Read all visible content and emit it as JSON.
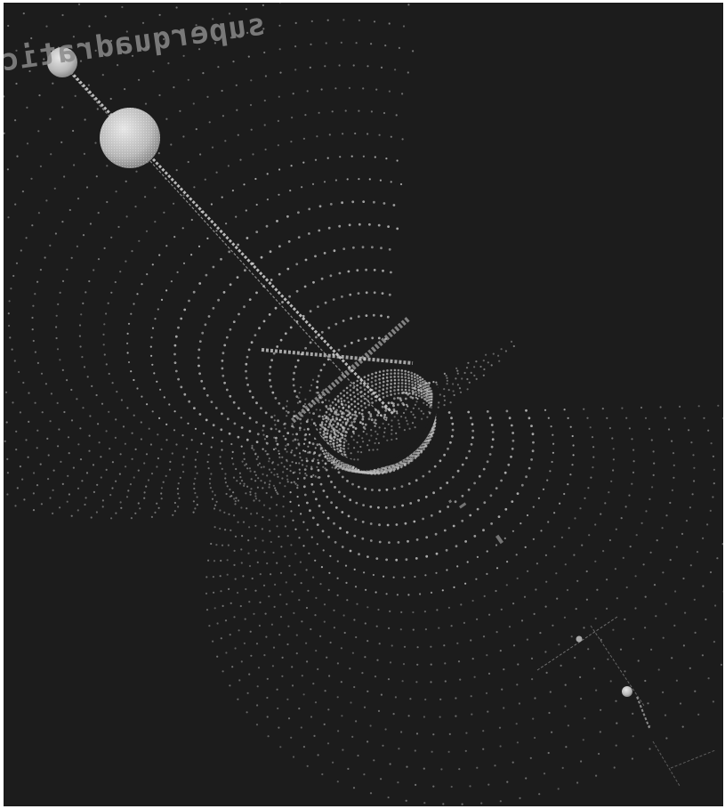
{
  "scene": {
    "label_text": "superquadratic",
    "colors": {
      "background": "#1c1c1c",
      "frame": "#ffffff",
      "particles": "#bdbdbd",
      "spheres": "#cfcfcf"
    }
  }
}
